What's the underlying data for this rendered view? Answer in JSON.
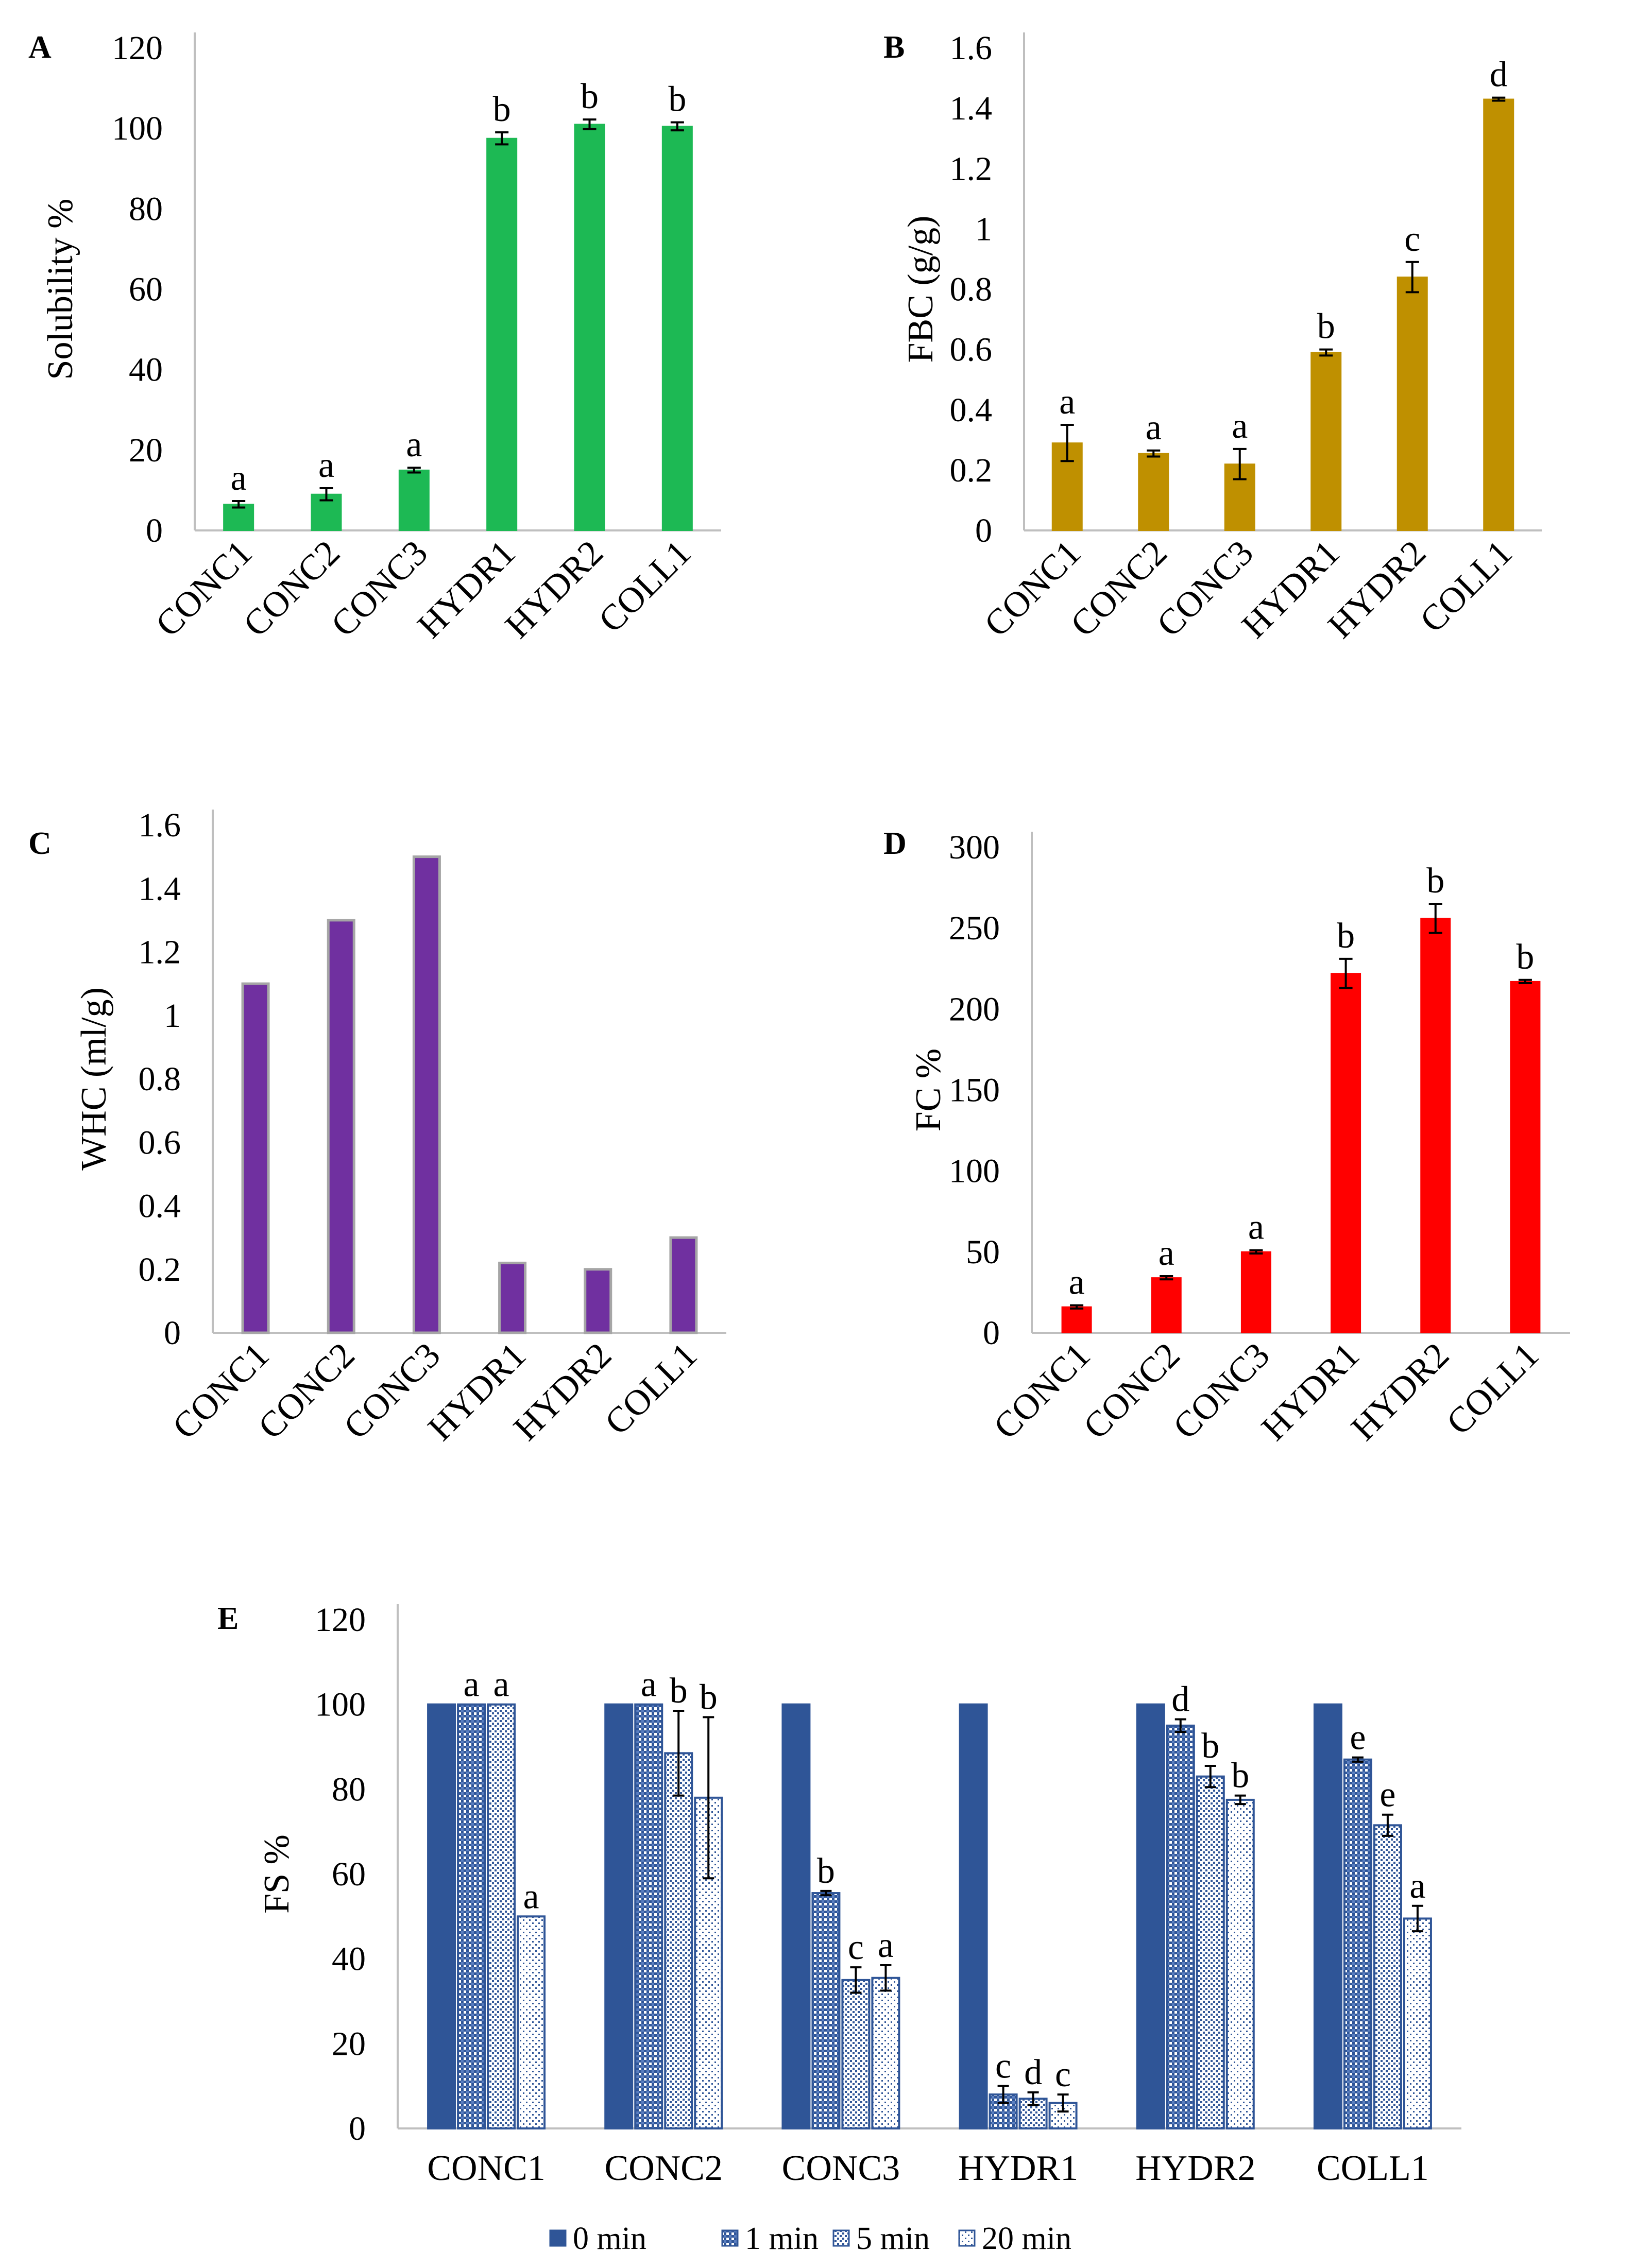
{
  "chart_data": [
    {
      "panel": "A",
      "type": "bar",
      "ylabel": "Solubility %",
      "ylim": [
        0,
        120
      ],
      "yticks": [
        0,
        20,
        40,
        60,
        80,
        100,
        120
      ],
      "categories": [
        "CONC1",
        "CONC2",
        "CONC3",
        "HYDR1",
        "HYDR2",
        "COLL1"
      ],
      "values": [
        6.5,
        9,
        15,
        97.5,
        101,
        100.5
      ],
      "errors": [
        0.8,
        1.5,
        0.6,
        1.5,
        1.2,
        1.0
      ],
      "significance": [
        "a",
        "a",
        "a",
        "b",
        "b",
        "b"
      ],
      "color": "#1db954",
      "grid": false
    },
    {
      "panel": "B",
      "type": "bar",
      "ylabel": "FBC (g/g)",
      "ylim": [
        0,
        1.6
      ],
      "yticks": [
        "0",
        "0.2",
        "0.4",
        "0.6",
        "0.8",
        "1",
        "1.2",
        "1.4",
        "1.6"
      ],
      "categories": [
        "CONC1",
        "CONC2",
        "CONC3",
        "HYDR1",
        "HYDR2",
        "COLL1"
      ],
      "values": [
        0.29,
        0.255,
        0.22,
        0.59,
        0.84,
        1.43
      ],
      "errors": [
        0.06,
        0.01,
        0.05,
        0.01,
        0.05,
        0.005
      ],
      "significance": [
        "a",
        "a",
        "a",
        "b",
        "c",
        "d"
      ],
      "color": "#bf9000",
      "grid": false
    },
    {
      "panel": "C",
      "type": "bar",
      "ylabel": "WHC (ml/g)",
      "ylim": [
        0,
        1.6
      ],
      "yticks": [
        "0",
        "0.2",
        "0.4",
        "0.6",
        "0.8",
        "1",
        "1.2",
        "1.4",
        "1.6"
      ],
      "categories": [
        "CONC1",
        "CONC2",
        "CONC3",
        "HYDR1",
        "HYDR2",
        "COLL1"
      ],
      "values": [
        1.1,
        1.3,
        1.5,
        0.22,
        0.2,
        0.3
      ],
      "color": "#7030a0",
      "grid": false
    },
    {
      "panel": "D",
      "type": "bar",
      "ylabel": "FC %",
      "ylim": [
        0,
        300
      ],
      "yticks": [
        0,
        50,
        100,
        150,
        200,
        250,
        300
      ],
      "categories": [
        "CONC1",
        "CONC2",
        "CONC3",
        "HYDR1",
        "HYDR2",
        "COLL1"
      ],
      "values": [
        16,
        34,
        50,
        222,
        256,
        217
      ],
      "errors": [
        1,
        1,
        1,
        9,
        9,
        1
      ],
      "significance": [
        "a",
        "a",
        "a",
        "b",
        "b",
        "b"
      ],
      "color": "#ff0000",
      "grid": false
    },
    {
      "panel": "E",
      "type": "bar",
      "ylabel": "FS %",
      "ylim": [
        0,
        120
      ],
      "yticks": [
        0,
        20,
        40,
        60,
        80,
        100,
        120
      ],
      "categories": [
        "CONC1",
        "CONC2",
        "CONC3",
        "HYDR1",
        "HYDR2",
        "COLL1"
      ],
      "legend_position": "bottom",
      "series": [
        {
          "name": "0 min",
          "pattern": "solid",
          "values": [
            100,
            100,
            100,
            100,
            100,
            100
          ],
          "errors": [
            null,
            null,
            null,
            null,
            null,
            null
          ],
          "significance": [
            "",
            "",
            "",
            "",
            "",
            ""
          ]
        },
        {
          "name": "1 min",
          "pattern": "dense",
          "values": [
            100,
            100,
            55.5,
            8,
            95,
            87
          ],
          "errors": [
            null,
            null,
            0.5,
            2,
            1.5,
            0.5
          ],
          "significance": [
            "a",
            "a",
            "b",
            "c",
            "d",
            "e"
          ]
        },
        {
          "name": "5 min",
          "pattern": "medium",
          "values": [
            100,
            88.5,
            35,
            7,
            83,
            71.5
          ],
          "errors": [
            null,
            10,
            3,
            1.5,
            2.5,
            2.5
          ],
          "significance": [
            "a",
            "b",
            "c",
            "d",
            "b",
            "e"
          ]
        },
        {
          "name": "20 min",
          "pattern": "sparse",
          "values": [
            50,
            78,
            35.5,
            6,
            77.5,
            49.5
          ],
          "errors": [
            null,
            19,
            3,
            2,
            1,
            3
          ],
          "significance": [
            "a",
            "b",
            "a",
            "c",
            "b",
            "a"
          ]
        }
      ],
      "grid": false
    }
  ]
}
